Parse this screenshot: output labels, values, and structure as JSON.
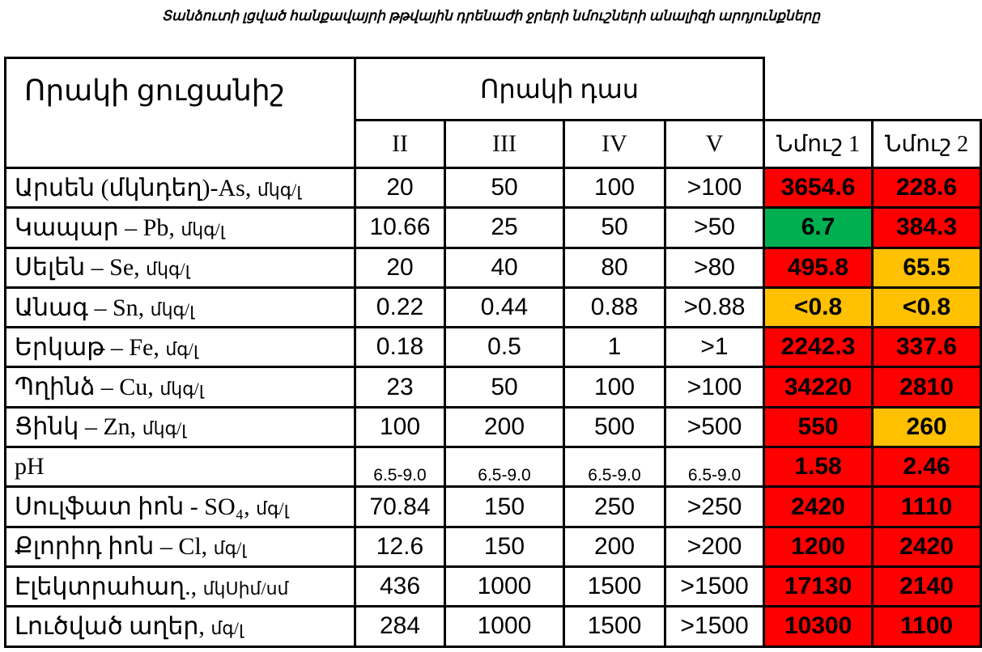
{
  "title": "Տանձուտի լցված հանքավայրի թթվային դրենաժի ջրերի նմուշների անալիզի արդյունքները",
  "table": {
    "header": {
      "indicator": "Որակի ցուցանիշ",
      "class_group": "Որակի   դաս",
      "classes": [
        "II",
        "III",
        "IV",
        "V"
      ],
      "samples": [
        "Նմուշ 1",
        "Նմուշ 2"
      ]
    },
    "rows": [
      {
        "name": "Արսեն (մկնդեղ)-As,",
        "unit": "մկգ/լ",
        "classes": [
          "20",
          "50",
          "100",
          ">100"
        ],
        "samples": [
          {
            "text": "3654.6",
            "color": "#ff0000"
          },
          {
            "text": "228.6",
            "color": "#ff0000"
          }
        ]
      },
      {
        "name": "Կապար – Pb,",
        "unit": "մկգ/լ",
        "classes": [
          "10.66",
          "25",
          "50",
          ">50"
        ],
        "samples": [
          {
            "text": "6.7",
            "color": "#00b050"
          },
          {
            "text": "384.3",
            "color": "#ff0000"
          }
        ]
      },
      {
        "name": "Սելեն – Se,",
        "unit": "մկգ/լ",
        "classes": [
          "20",
          "40",
          "80",
          ">80"
        ],
        "samples": [
          {
            "text": "495.8",
            "color": "#ff0000"
          },
          {
            "text": "65.5",
            "color": "#ffc000"
          }
        ]
      },
      {
        "name": "Անագ – Sn,",
        "unit": "մկգ/լ",
        "classes": [
          "0.22",
          "0.44",
          "0.88",
          ">0.88"
        ],
        "samples": [
          {
            "text": "<0.8",
            "color": "#ffc000"
          },
          {
            "text": "<0.8",
            "color": "#ffc000"
          }
        ]
      },
      {
        "name": "Երկաթ – Fe,",
        "unit": "մգ/լ",
        "classes": [
          "0.18",
          "0.5",
          "1",
          ">1"
        ],
        "samples": [
          {
            "text": "2242.3",
            "color": "#ff0000"
          },
          {
            "text": "337.6",
            "color": "#ff0000"
          }
        ]
      },
      {
        "name": "Պղինձ – Cu,",
        "unit": "մկգ/լ",
        "classes": [
          "23",
          "50",
          "100",
          ">100"
        ],
        "samples": [
          {
            "text": "34220",
            "color": "#ff0000"
          },
          {
            "text": "2810",
            "color": "#ff0000"
          }
        ]
      },
      {
        "name": "Ցինկ – Zn,",
        "unit": "մկգ/լ",
        "classes": [
          "100",
          "200",
          "500",
          ">500"
        ],
        "samples": [
          {
            "text": "550",
            "color": "#ff0000"
          },
          {
            "text": "260",
            "color": "#ffc000"
          }
        ]
      },
      {
        "name": "pH",
        "unit": "",
        "classes": [
          "6.5-9.0",
          "6.5-9.0",
          "6.5-9.0",
          "6.5-9.0"
        ],
        "samples": [
          {
            "text": "1.58",
            "color": "#ff0000"
          },
          {
            "text": "2.46",
            "color": "#ff0000"
          }
        ]
      },
      {
        "name": "Սուլֆատ իոն - SO₄,",
        "unit": "մգ/լ",
        "classes": [
          "70.84",
          "150",
          "250",
          ">250"
        ],
        "samples": [
          {
            "text": "2420",
            "color": "#ff0000"
          },
          {
            "text": "1110",
            "color": "#ff0000"
          }
        ]
      },
      {
        "name": "Քլորիդ իոն – Cl,",
        "unit": "մգ/լ",
        "classes": [
          "12.6",
          "150",
          "200",
          ">200"
        ],
        "samples": [
          {
            "text": "1200",
            "color": "#ff0000"
          },
          {
            "text": "2420",
            "color": "#ff0000"
          }
        ]
      },
      {
        "name": "Էլեկտրահաղ.,",
        "unit": "մկՍիմ/սմ",
        "classes": [
          "436",
          "1000",
          "1500",
          ">1500"
        ],
        "samples": [
          {
            "text": "17130",
            "color": "#ff0000"
          },
          {
            "text": "2140",
            "color": "#ff0000"
          }
        ]
      },
      {
        "name": "Լուծված աղեր,",
        "unit": "մգ/լ",
        "classes": [
          "284",
          "1000",
          "1500",
          ">1500"
        ],
        "samples": [
          {
            "text": "10300",
            "color": "#ff0000"
          },
          {
            "text": "1100",
            "color": "#ff0000"
          }
        ]
      }
    ]
  }
}
